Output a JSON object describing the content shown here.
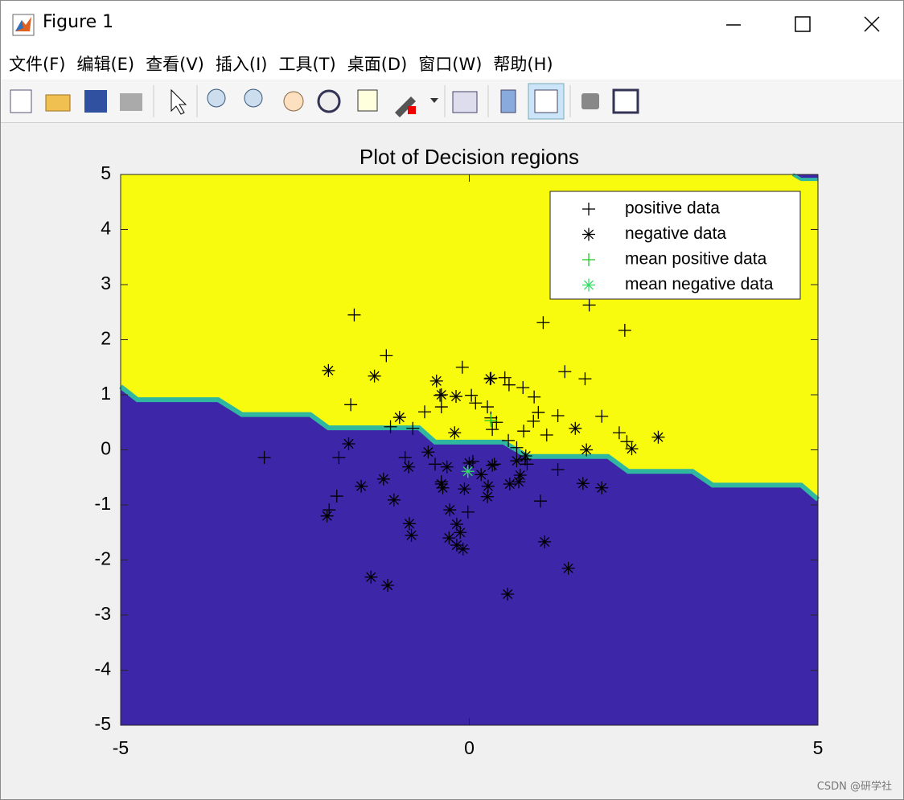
{
  "window": {
    "title": "Figure 1",
    "menu": [
      "文件(F)",
      "编辑(E)",
      "查看(V)",
      "插入(I)",
      "工具(T)",
      "桌面(D)",
      "窗口(W)",
      "帮助(H)"
    ],
    "watermark": "CSDN @研学社"
  },
  "chart_data": {
    "type": "scatter",
    "title": "Plot of Decision regions",
    "xlim": [
      -5,
      5
    ],
    "ylim": [
      -5,
      5
    ],
    "xticks": [
      -5,
      0,
      5
    ],
    "yticks": [
      -5,
      -4,
      -3,
      -2,
      -1,
      0,
      1,
      2,
      3,
      4,
      5
    ],
    "legend": "upper right",
    "regions": {
      "above_color": "#f9fb0e",
      "below_color": "#3e26a8",
      "boundary_color": "#2fb7a0",
      "boundary": {
        "x": [
          -5,
          -4.76,
          -3.6,
          -3.26,
          -2.28,
          -2.02,
          -0.72,
          -0.49,
          0.49,
          0.84,
          1.99,
          2.28,
          3.2,
          3.49,
          4.76,
          5
        ],
        "y": [
          1.15,
          0.91,
          0.91,
          0.64,
          0.64,
          0.4,
          0.4,
          0.14,
          0.14,
          -0.12,
          -0.12,
          -0.39,
          -0.39,
          -0.64,
          -0.64,
          -0.9
        ]
      },
      "corner_boundary": {
        "x": [
          4.64,
          4.76,
          5
        ],
        "y": [
          5,
          4.91,
          4.91
        ]
      }
    },
    "series": [
      {
        "name": "positive data",
        "marker": "+",
        "color": "#000000",
        "x": [
          -1.65,
          -1.19,
          -1.7,
          -0.1,
          1.06,
          1.72,
          2.23,
          1.37,
          1.66,
          0.51,
          0.31,
          0.57,
          0.77,
          0.93,
          0.03,
          -0.42,
          -0.4,
          -0.64,
          0.09,
          0.26,
          0.31,
          0.39,
          0.99,
          1.27,
          1.9,
          0.92,
          0.78,
          1.11,
          2.15,
          2.26,
          -1.13,
          -0.81,
          0.33,
          0.56,
          0.68,
          -0.49,
          -0.92,
          -1.87,
          -2.94,
          0.05,
          0.36,
          0.8,
          0.83,
          1.27,
          -0.4,
          -1.9,
          -2.01,
          1.02,
          -0.02
        ],
        "values": [
          2.45,
          1.71,
          0.82,
          1.5,
          2.31,
          2.63,
          2.17,
          1.42,
          1.29,
          1.31,
          1.3,
          1.18,
          1.13,
          0.96,
          0.99,
          0.99,
          0.78,
          0.69,
          0.85,
          0.78,
          0.58,
          0.5,
          0.68,
          0.62,
          0.61,
          0.52,
          0.34,
          0.27,
          0.31,
          0.15,
          0.42,
          0.39,
          0.37,
          0.17,
          0.04,
          -0.26,
          -0.14,
          -0.14,
          -0.14,
          -0.21,
          -0.26,
          -0.17,
          -0.26,
          -0.36,
          -0.58,
          -0.84,
          -1.09,
          -0.93,
          -1.13
        ]
      },
      {
        "name": "negative data",
        "marker": "*",
        "color": "#000000",
        "x": [
          -2.02,
          -1.36,
          -0.47,
          -0.4,
          -0.19,
          0.3,
          -1.0,
          -1.73,
          -0.21,
          1.52,
          1.68,
          2.33,
          2.71,
          -0.59,
          0.81,
          0.68,
          0.33,
          0.0,
          -0.32,
          -0.87,
          0.17,
          -0.4,
          -0.38,
          0.27,
          0.26,
          -1.55,
          -1.23,
          -1.08,
          0.58,
          0.71,
          0.73,
          1.63,
          1.9,
          -0.07,
          -0.28,
          -0.18,
          -0.13,
          -0.86,
          -0.83,
          -0.29,
          -0.18,
          -0.09,
          1.08,
          -2.04,
          1.42,
          -1.41,
          -1.17,
          0.55
        ],
        "values": [
          1.44,
          1.34,
          1.25,
          1.0,
          0.97,
          1.29,
          0.59,
          0.11,
          0.31,
          0.39,
          0.0,
          0.02,
          0.23,
          -0.04,
          -0.11,
          -0.2,
          -0.28,
          -0.24,
          -0.31,
          -0.31,
          -0.45,
          -0.62,
          -0.69,
          -0.66,
          -0.85,
          -0.66,
          -0.53,
          -0.91,
          -0.62,
          -0.58,
          -0.46,
          -0.61,
          -0.69,
          -0.71,
          -1.09,
          -1.35,
          -1.5,
          -1.34,
          -1.55,
          -1.6,
          -1.73,
          -1.8,
          -1.67,
          -1.2,
          -2.15,
          -2.31,
          -2.46,
          -2.62
        ]
      },
      {
        "name": "mean positive data",
        "marker": "+",
        "color": "#22cc22",
        "x": [
          0.31
        ],
        "values": [
          0.53
        ]
      },
      {
        "name": "mean negative data",
        "marker": "*",
        "color": "#33dd66",
        "x": [
          -0.02
        ],
        "values": [
          -0.39
        ]
      }
    ]
  }
}
